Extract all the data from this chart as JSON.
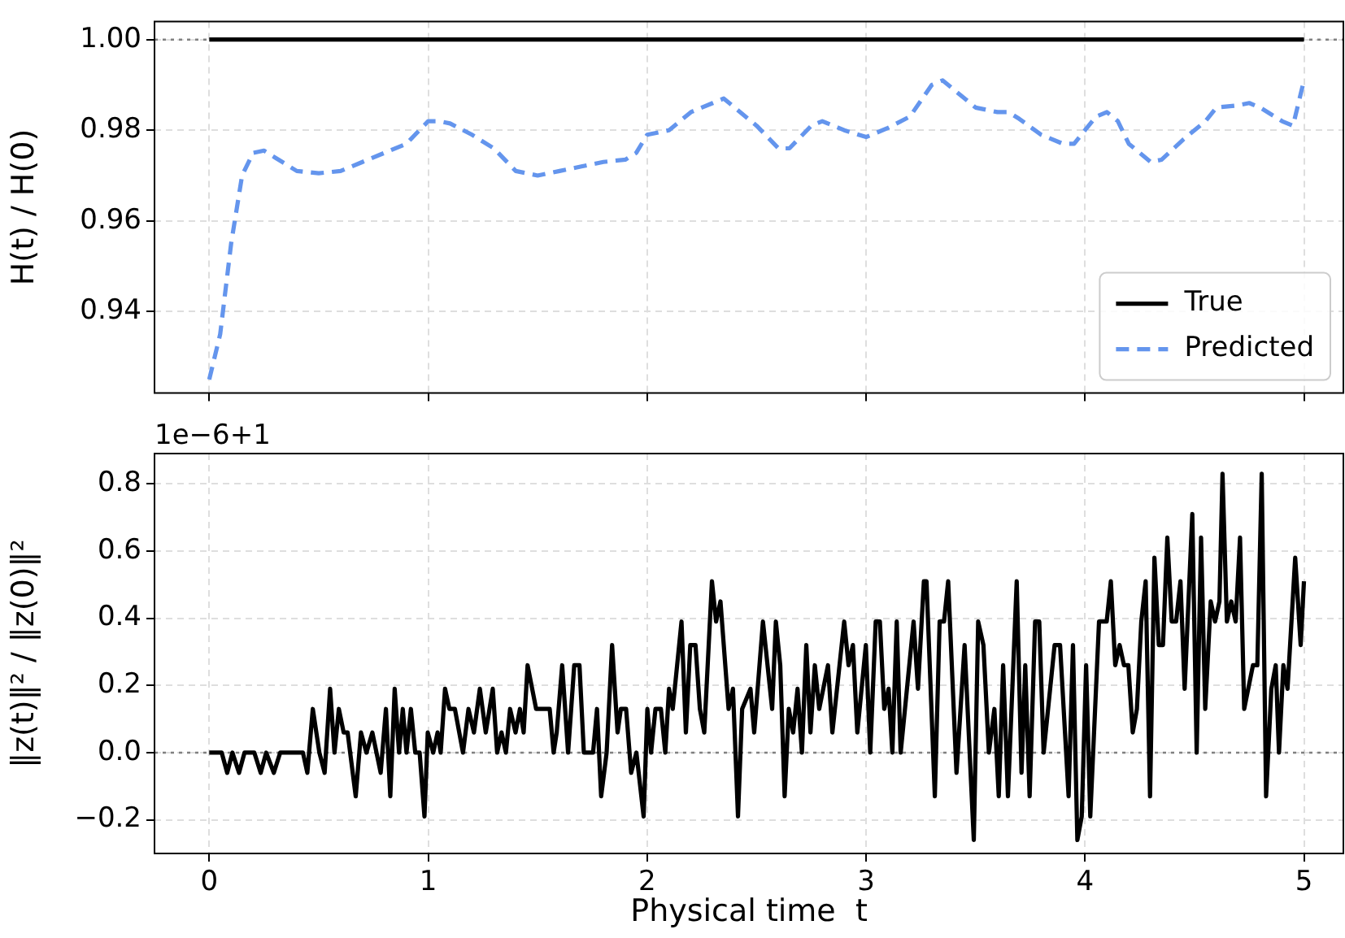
{
  "chart_data": [
    {
      "type": "line",
      "ylabel": "H(t) / H(0)",
      "xlim": [
        -0.25,
        5.18
      ],
      "xticks": [
        0,
        1,
        2,
        3,
        4,
        5
      ],
      "ylim": [
        0.922,
        1.004
      ],
      "yticks": [
        0.94,
        0.96,
        0.98,
        {
          "value": 1,
          "label": "1.00"
        }
      ],
      "grid": true,
      "legend": "bottom right",
      "tick_labels": "y",
      "ref_lines": [
        {
          "axis": "y",
          "value": 1,
          "color": "#808080",
          "line_style": "dotted"
        }
      ],
      "series": [
        {
          "name": "True",
          "color": "#000000",
          "line_style": "solid",
          "x": [
            0,
            5
          ],
          "values": [
            1,
            1
          ]
        },
        {
          "name": "Predicted",
          "color": "#6495ed",
          "line_style": "dashed",
          "x": [
            0,
            0.05,
            0.1,
            0.15,
            0.2,
            0.25,
            0.3,
            0.4,
            0.5,
            0.6,
            0.7,
            0.8,
            0.9,
            1.0,
            1.05,
            1.1,
            1.2,
            1.3,
            1.4,
            1.5,
            1.6,
            1.7,
            1.8,
            1.9,
            1.95,
            2.0,
            2.1,
            2.2,
            2.3,
            2.35,
            2.4,
            2.5,
            2.6,
            2.65,
            2.75,
            2.8,
            2.9,
            3.0,
            3.1,
            3.2,
            3.3,
            3.35,
            3.4,
            3.5,
            3.6,
            3.65,
            3.7,
            3.8,
            3.9,
            3.95,
            4.0,
            4.05,
            4.1,
            4.15,
            4.2,
            4.3,
            4.35,
            4.45,
            4.55,
            4.6,
            4.7,
            4.75,
            4.8,
            4.9,
            4.95,
            5.0
          ],
          "values": [
            0.925,
            0.935,
            0.955,
            0.97,
            0.975,
            0.9755,
            0.974,
            0.971,
            0.9705,
            0.971,
            0.973,
            0.975,
            0.977,
            0.982,
            0.982,
            0.9815,
            0.979,
            0.976,
            0.971,
            0.97,
            0.971,
            0.972,
            0.973,
            0.9735,
            0.975,
            0.979,
            0.98,
            0.984,
            0.986,
            0.987,
            0.985,
            0.981,
            0.976,
            0.976,
            0.981,
            0.982,
            0.98,
            0.9785,
            0.9805,
            0.983,
            0.99,
            0.991,
            0.989,
            0.985,
            0.984,
            0.984,
            0.9825,
            0.979,
            0.977,
            0.977,
            0.98,
            0.983,
            0.984,
            0.982,
            0.977,
            0.973,
            0.9735,
            0.978,
            0.982,
            0.985,
            0.9855,
            0.986,
            0.985,
            0.982,
            0.981,
            0.991
          ]
        }
      ]
    },
    {
      "type": "line",
      "xlabel": "Physical time  t",
      "ylabel": "‖z(t)‖² / ‖z(0)‖²",
      "annotations": [
        "1e−6+1"
      ],
      "xlim": [
        -0.25,
        5.18
      ],
      "xticks": [
        0,
        1,
        2,
        3,
        4,
        5
      ],
      "ylim": [
        -0.3,
        0.89
      ],
      "yticks": [
        {
          "value": -0.2,
          "label": "−0.2"
        },
        {
          "value": 0,
          "label": "0.0"
        },
        0.2,
        0.4,
        0.6,
        0.8
      ],
      "grid": true,
      "ref_lines": [
        {
          "axis": "y",
          "value": 0,
          "color": "#808080",
          "line_style": "dotted"
        }
      ],
      "series": [
        {
          "color": "#000000",
          "line_style": "solid",
          "x": [
            0,
            0.057,
            0.082,
            0.106,
            0.136,
            0.161,
            0.206,
            0.235,
            0.26,
            0.295,
            0.324,
            0.428,
            0.448,
            0.473,
            0.503,
            0.527,
            0.552,
            0.572,
            0.592,
            0.614,
            0.632,
            0.669,
            0.693,
            0.718,
            0.745,
            0.783,
            0.807,
            0.827,
            0.847,
            0.867,
            0.884,
            0.901,
            0.921,
            0.941,
            0.961,
            0.983,
            0.998,
            1.023,
            1.043,
            1.057,
            1.077,
            1.097,
            1.122,
            1.159,
            1.184,
            1.209,
            1.236,
            1.263,
            1.295,
            1.315,
            1.335,
            1.355,
            1.374,
            1.399,
            1.419,
            1.436,
            1.454,
            1.493,
            1.555,
            1.573,
            1.587,
            1.612,
            1.639,
            1.667,
            1.691,
            1.711,
            1.753,
            1.771,
            1.79,
            1.815,
            1.84,
            1.865,
            1.88,
            1.904,
            1.927,
            1.951,
            1.984,
            2.001,
            2.018,
            2.038,
            2.063,
            2.083,
            2.1,
            2.117,
            2.157,
            2.177,
            2.197,
            2.221,
            2.241,
            2.261,
            2.296,
            2.315,
            2.335,
            2.372,
            2.392,
            2.415,
            2.434,
            2.472,
            2.489,
            2.529,
            2.571,
            2.588,
            2.608,
            2.628,
            2.647,
            2.667,
            2.687,
            2.707,
            2.727,
            2.746,
            2.766,
            2.786,
            2.826,
            2.846,
            2.9,
            2.92,
            2.94,
            2.96,
            2.999,
            3.019,
            3.044,
            3.063,
            3.083,
            3.103,
            3.12,
            3.14,
            3.158,
            3.217,
            3.237,
            3.264,
            3.276,
            3.314,
            3.336,
            3.356,
            3.375,
            3.413,
            3.45,
            3.492,
            3.512,
            3.536,
            3.561,
            3.586,
            3.606,
            3.626,
            3.648,
            3.688,
            3.71,
            3.727,
            3.747,
            3.772,
            3.791,
            3.811,
            3.861,
            3.886,
            3.925,
            3.945,
            3.965,
            3.985,
            4.005,
            4.024,
            4.064,
            4.099,
            4.118,
            4.138,
            4.158,
            4.178,
            4.198,
            4.218,
            4.237,
            4.257,
            4.277,
            4.297,
            4.317,
            4.337,
            4.356,
            4.376,
            4.396,
            4.416,
            4.436,
            4.455,
            4.49,
            4.51,
            4.53,
            4.549,
            4.574,
            4.594,
            4.614,
            4.628,
            4.648,
            4.668,
            4.688,
            4.708,
            4.727,
            4.767,
            4.787,
            4.807,
            4.827,
            4.851,
            4.871,
            4.886,
            4.906,
            4.925,
            4.96,
            4.985,
            5.0
          ],
          "values": [
            0,
            0,
            -0.06,
            0,
            -0.06,
            0,
            0,
            -0.06,
            0,
            -0.06,
            0,
            0,
            -0.06,
            0.13,
            0,
            -0.06,
            0.19,
            0,
            0.13,
            0.06,
            0.06,
            -0.13,
            0.06,
            0,
            0.06,
            -0.06,
            0.13,
            -0.13,
            0.19,
            0,
            0.13,
            0,
            0.13,
            0,
            0,
            -0.19,
            0.06,
            0,
            0.06,
            0,
            0.19,
            0.13,
            0.13,
            0,
            0.13,
            0.06,
            0.19,
            0.06,
            0.19,
            0,
            0.06,
            0,
            0.13,
            0.06,
            0.13,
            0.06,
            0.26,
            0.13,
            0.13,
            0,
            0.06,
            0.26,
            0,
            0.26,
            0.26,
            0,
            0,
            0.13,
            -0.13,
            0,
            0.32,
            0.06,
            0.13,
            0.13,
            -0.06,
            0,
            -0.19,
            0.13,
            0,
            0.13,
            0.13,
            0,
            0.19,
            0.13,
            0.39,
            0.06,
            0.32,
            0.32,
            0.13,
            0.06,
            0.51,
            0.39,
            0.45,
            0.13,
            0.19,
            -0.19,
            0.13,
            0.19,
            0.06,
            0.39,
            0.13,
            0.39,
            0.26,
            -0.13,
            0.13,
            0.06,
            0.19,
            0,
            0.32,
            0.06,
            0.26,
            0.13,
            0.26,
            0.06,
            0.39,
            0.26,
            0.32,
            0.06,
            0.32,
            0,
            0.39,
            0.39,
            0.13,
            0.19,
            0,
            0.39,
            0,
            0.39,
            0.19,
            0.51,
            0.51,
            -0.13,
            0.39,
            0.39,
            0.51,
            -0.06,
            0.32,
            -0.26,
            0.39,
            0.32,
            0,
            0.13,
            -0.13,
            0.26,
            -0.13,
            0.51,
            -0.06,
            0.26,
            -0.13,
            0.39,
            0.39,
            0,
            0.32,
            0.32,
            -0.13,
            0.32,
            -0.26,
            -0.19,
            0.26,
            -0.19,
            0.39,
            0.39,
            0.51,
            0.26,
            0.32,
            0.26,
            0.26,
            0.06,
            0.13,
            0.39,
            0.51,
            -0.13,
            0.58,
            0.32,
            0.32,
            0.64,
            0.39,
            0.39,
            0.51,
            0.19,
            0.71,
            0,
            0.64,
            0.13,
            0.45,
            0.39,
            0.45,
            0.83,
            0.39,
            0.45,
            0.39,
            0.64,
            0.13,
            0.26,
            0.26,
            0.83,
            -0.13,
            0.19,
            0.26,
            0,
            0.26,
            0.19,
            0.58,
            0.32,
            0.51
          ]
        }
      ]
    }
  ]
}
